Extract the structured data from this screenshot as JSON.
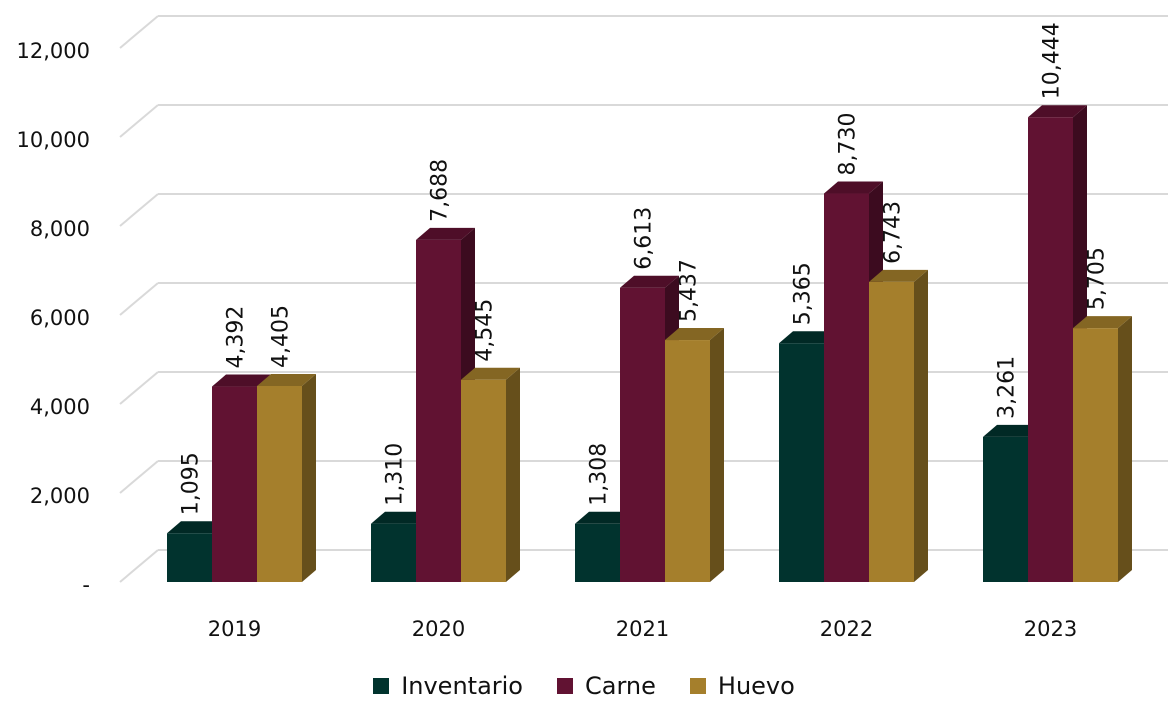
{
  "chart_data": {
    "type": "bar",
    "title": "",
    "xlabel": "",
    "ylabel": "",
    "categories": [
      "2019",
      "2020",
      "2021",
      "2022",
      "2023"
    ],
    "ylim": [
      0,
      12000
    ],
    "yticks": [
      0,
      2000,
      4000,
      6000,
      8000,
      10000,
      12000
    ],
    "ytick_labels": [
      "-",
      "2,000",
      "4,000",
      "6,000",
      "8,000",
      "10,000",
      "12,000"
    ],
    "grid": true,
    "legend_position": "bottom",
    "series": [
      {
        "name": "Inventario",
        "color": "#01332E",
        "values": [
          1095,
          1310,
          1308,
          5365,
          3261
        ],
        "labels": [
          "1,095",
          "1,310",
          "1,308",
          "5,365",
          "3,261"
        ]
      },
      {
        "name": "Carne",
        "color": "#611232",
        "values": [
          4392,
          7688,
          6613,
          8730,
          10444
        ],
        "labels": [
          "4,392",
          "7,688",
          "6,613",
          "8,730",
          "10,444"
        ]
      },
      {
        "name": "Huevo",
        "color": "#A57F2C",
        "values": [
          4405,
          4545,
          5437,
          6743,
          5705
        ],
        "labels": [
          "4,405",
          "4,545",
          "5,437",
          "6,743",
          "5,705"
        ]
      }
    ]
  }
}
